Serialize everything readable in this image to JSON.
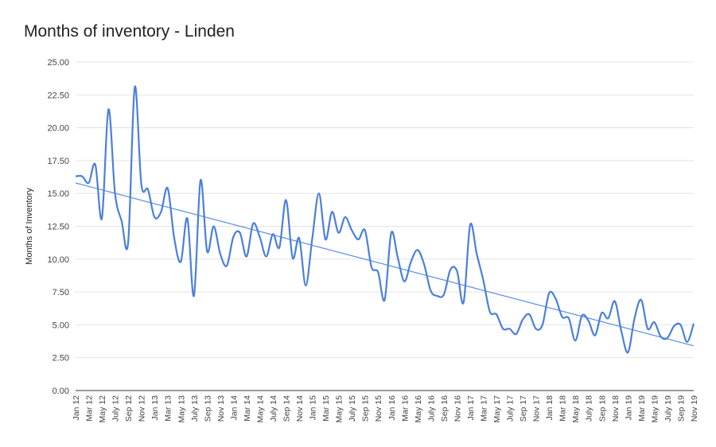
{
  "chart_data": {
    "type": "line",
    "title": "Months of inventory - Linden",
    "xlabel": "",
    "ylabel": "Months of Inventory",
    "ylim": [
      0,
      25
    ],
    "y_ticks": [
      "0.00",
      "2.50",
      "5.00",
      "7.50",
      "10.00",
      "12.50",
      "15.00",
      "17.50",
      "20.00",
      "22.50",
      "25.00"
    ],
    "grid": true,
    "legend": "none",
    "x_tick_labels": [
      "Jan 12",
      "Mar 12",
      "May 12",
      "July 12",
      "Sep 12",
      "Nov 12",
      "Jan 13",
      "Mar 13",
      "May 13",
      "July 13",
      "Sep 13",
      "Nov 13",
      "Jan 14",
      "Mar 14",
      "May 14",
      "July 14",
      "Sep 14",
      "Nov 14",
      "Jan 15",
      "Mar 15",
      "May 15",
      "July 15",
      "Sep 15",
      "Nov 15",
      "Jan 16",
      "Mar 16",
      "May 16",
      "July 16",
      "Sep 16",
      "Nov 16",
      "Jan 17",
      "Mar 17",
      "May 17",
      "July 17",
      "Sep 17",
      "Nov 17",
      "Jan 18",
      "Mar 18",
      "May 18",
      "July 18",
      "Sep 18",
      "Nov 18",
      "Jan 19",
      "Mar 19",
      "May 19",
      "July 19",
      "Sep 19",
      "Nov 19"
    ],
    "series": [
      {
        "color": "#4a7fdc",
        "values": [
          16.3,
          16.3,
          15.8,
          17.2,
          13.1,
          21.4,
          15.0,
          12.9,
          11.3,
          23.1,
          15.7,
          15.3,
          13.2,
          13.6,
          15.4,
          11.6,
          9.8,
          13.1,
          7.2,
          16.0,
          10.6,
          12.5,
          10.4,
          9.5,
          11.7,
          12.0,
          10.2,
          12.7,
          11.7,
          10.2,
          11.9,
          10.9,
          14.5,
          10.1,
          11.6,
          8.0,
          11.6,
          15.0,
          11.5,
          13.6,
          12.0,
          13.2,
          12.2,
          11.5,
          12.2,
          9.4,
          9.0,
          6.9,
          12.0,
          10.1,
          8.3,
          9.8,
          10.7,
          9.6,
          7.6,
          7.2,
          7.3,
          9.2,
          9.1,
          6.7,
          12.6,
          10.4,
          8.4,
          6.0,
          5.8,
          4.7,
          4.7,
          4.3,
          5.4,
          5.8,
          4.7,
          5.0,
          7.4,
          7.0,
          5.6,
          5.5,
          3.8,
          5.7,
          5.3,
          4.2,
          5.9,
          5.5,
          6.8,
          4.5,
          2.9,
          5.5,
          6.9,
          4.7,
          5.2,
          4.1,
          4.0,
          4.9,
          5.0,
          3.7,
          5.1
        ]
      }
    ],
    "trendline": {
      "color": "#5b8ee6",
      "start": 15.8,
      "end": 3.4
    }
  }
}
